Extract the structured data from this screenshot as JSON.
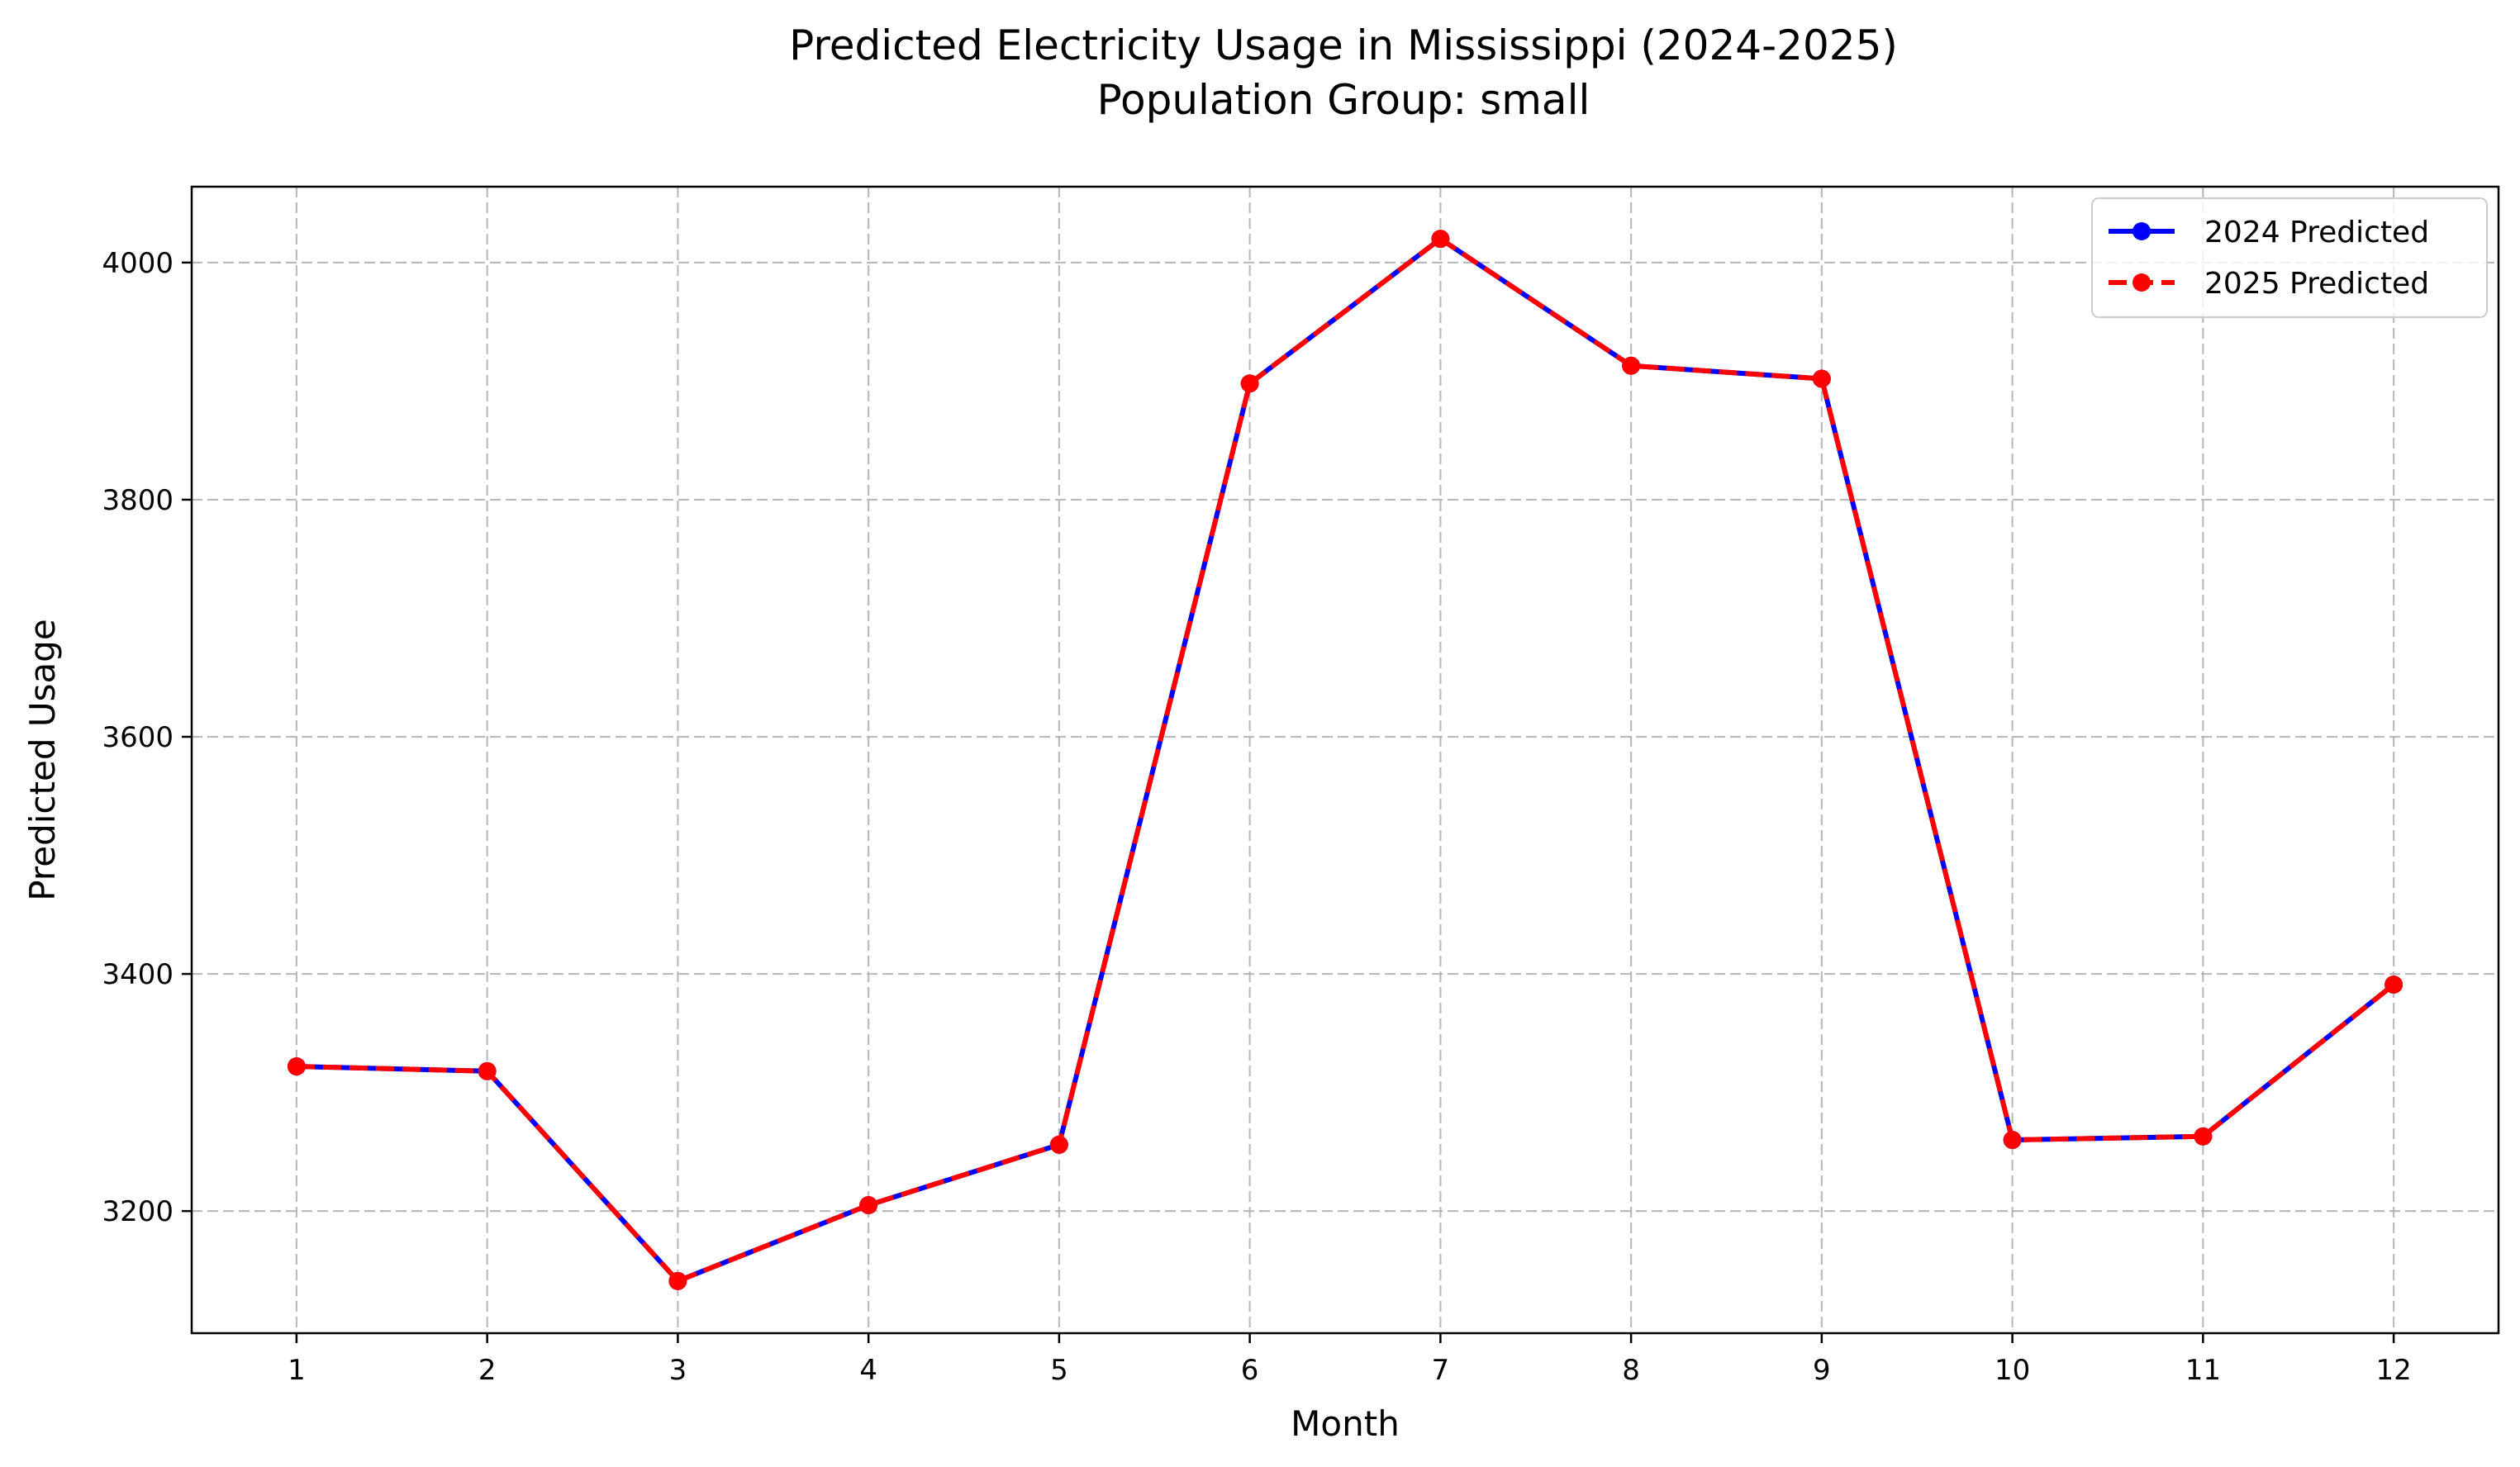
{
  "chart_data": {
    "type": "line",
    "title": "Predicted Electricity Usage in Mississippi (2024-2025)",
    "subtitle": "Population Group: small",
    "xlabel": "Month",
    "ylabel": "Predicted Usage",
    "x": [
      1,
      2,
      3,
      4,
      5,
      6,
      7,
      8,
      9,
      10,
      11,
      12
    ],
    "xticks": [
      "1",
      "2",
      "3",
      "4",
      "5",
      "6",
      "7",
      "8",
      "9",
      "10",
      "11",
      "12"
    ],
    "yticks": [
      "3200",
      "3400",
      "3600",
      "3800",
      "4000"
    ],
    "xlim": [
      0.45,
      12.55
    ],
    "ylim": [
      3097,
      4064
    ],
    "grid": true,
    "legend_position": "top-right",
    "series": [
      {
        "name": "2024 Predicted",
        "color": "#0000ff",
        "line_style": "solid",
        "marker": "circle",
        "values": [
          3322,
          3318,
          3141,
          3205,
          3256,
          3898,
          4020,
          3913,
          3902,
          3260,
          3263,
          3391
        ]
      },
      {
        "name": "2025 Predicted",
        "color": "#ff0000",
        "line_style": "dashed",
        "marker": "circle",
        "values": [
          3322,
          3318,
          3141,
          3205,
          3256,
          3898,
          4020,
          3913,
          3902,
          3260,
          3263,
          3391
        ]
      }
    ]
  }
}
